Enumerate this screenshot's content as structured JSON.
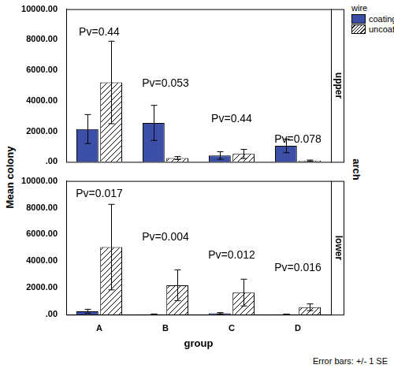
{
  "chart_data": [
    {
      "type": "bar",
      "facet": "upper",
      "categories": [
        "A",
        "B",
        "C",
        "D"
      ],
      "series": [
        {
          "name": "coating",
          "color": "#3c4fa6",
          "values": [
            2150,
            2550,
            420,
            1050
          ],
          "errors": [
            950,
            1150,
            250,
            450
          ]
        },
        {
          "name": "uncoating",
          "color": "#ffffff",
          "values": [
            5200,
            250,
            520,
            80
          ],
          "errors": [
            2700,
            100,
            300,
            40
          ]
        }
      ],
      "ylim": [
        0,
        10000
      ],
      "yticks": [
        {
          "value": 0,
          "label": ".00"
        },
        {
          "value": 2000,
          "label": "2000.00"
        },
        {
          "value": 4000,
          "label": "4000.00"
        },
        {
          "value": 6000,
          "label": "6000.00"
        },
        {
          "value": 8000,
          "label": "8000.00"
        },
        {
          "value": 10000,
          "label": "10000.00"
        }
      ],
      "grid": false,
      "tick_labels": "y",
      "annotations": [
        {
          "text": "Pv=0.44",
          "category": "A",
          "y": 8500
        },
        {
          "text": "Pv=0.053",
          "category": "B",
          "y": 5100
        },
        {
          "text": "Pv=0.44",
          "category": "C",
          "y": 2800
        },
        {
          "text": "Pv=0.078",
          "category": "D",
          "y": 1450
        }
      ]
    },
    {
      "type": "bar",
      "facet": "lower",
      "x_label": "group",
      "categories": [
        "A",
        "B",
        "C",
        "D"
      ],
      "series": [
        {
          "name": "coating",
          "color": "#3c4fa6",
          "values": [
            250,
            30,
            100,
            30
          ],
          "errors": [
            150,
            15,
            50,
            10
          ]
        },
        {
          "name": "uncoating",
          "color": "#ffffff",
          "values": [
            5050,
            2200,
            1650,
            550
          ],
          "errors": [
            3200,
            1150,
            1000,
            250
          ]
        }
      ],
      "ylim": [
        0,
        10000
      ],
      "yticks": [
        {
          "value": 0,
          "label": ".00"
        },
        {
          "value": 2000,
          "label": "2000.00"
        },
        {
          "value": 4000,
          "label": "4000.00"
        },
        {
          "value": 6000,
          "label": "6000.00"
        },
        {
          "value": 8000,
          "label": "8000.00"
        },
        {
          "value": 10000,
          "label": "10000.00"
        }
      ],
      "grid": false,
      "tick_labels": true,
      "annotations": [
        {
          "text": "Pv=0.017",
          "category": "A",
          "y": 9000
        },
        {
          "text": "Pv=0.004",
          "category": "B",
          "y": 5800
        },
        {
          "text": "Pv=0.012",
          "category": "C",
          "y": 4450
        },
        {
          "text": "Pv=0.016",
          "category": "D",
          "y": 3500
        }
      ]
    }
  ],
  "y_label": "Mean colony",
  "facet_label": "arch",
  "legend_title": "wire",
  "legend": "right",
  "note": "Error bars: +/- 1 SE"
}
